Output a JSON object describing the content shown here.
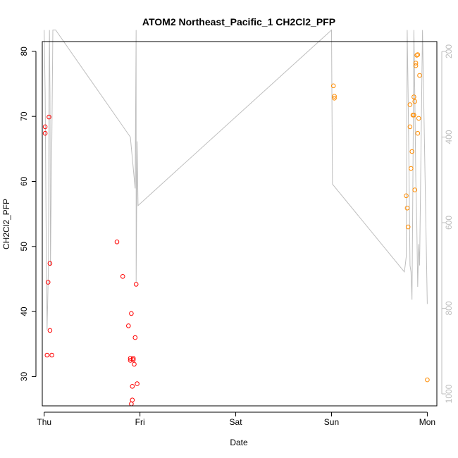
{
  "chart_data": {
    "type": "scatter",
    "title": "ATOM2 Northeast_Pacific_1 CH2Cl2_PFP",
    "xlabel": "Date",
    "ylabel": "CH2Cl2_PFP",
    "x_ticks": [
      "Thu",
      "Fri",
      "Sat",
      "Sun",
      "Mon"
    ],
    "xlim": [
      -0.02,
      4.1
    ],
    "ylim": [
      25.5,
      81.5
    ],
    "y_ticks": [
      30,
      40,
      50,
      60,
      70,
      80
    ],
    "y2_ticks": [
      200,
      400,
      600,
      800,
      1000
    ],
    "y2lim": [
      1028,
      177
    ],
    "grid": false,
    "colors": {
      "series_1": "#ff0000",
      "series_2": "#ff8c00",
      "altitude_line": "#bebebe",
      "axis": "#000000",
      "right_axis": "#bebebe"
    },
    "series": [
      {
        "color": "#ff0000",
        "points": [
          [
            0.01,
            68.4
          ],
          [
            0.01,
            67.4
          ],
          [
            0.03,
            33.3
          ],
          [
            0.04,
            44.5
          ],
          [
            0.05,
            69.9
          ],
          [
            0.06,
            37.1
          ],
          [
            0.06,
            47.4
          ],
          [
            0.08,
            33.3
          ],
          [
            0.76,
            50.7
          ],
          [
            0.82,
            45.4
          ],
          [
            0.88,
            37.8
          ],
          [
            0.9,
            32.5
          ],
          [
            0.9,
            32.8
          ],
          [
            0.91,
            25.8
          ],
          [
            0.91,
            39.7
          ],
          [
            0.92,
            26.4
          ],
          [
            0.92,
            28.5
          ],
          [
            0.93,
            32.6
          ],
          [
            0.93,
            32.8
          ],
          [
            0.94,
            31.9
          ],
          [
            0.95,
            36.0
          ],
          [
            0.96,
            44.2
          ],
          [
            0.97,
            28.9
          ]
        ]
      },
      {
        "color": "#ff8c00",
        "points": [
          [
            3.02,
            74.7
          ],
          [
            3.03,
            73.1
          ],
          [
            3.03,
            72.8
          ],
          [
            3.78,
            57.8
          ],
          [
            3.79,
            55.9
          ],
          [
            3.8,
            53.0
          ],
          [
            3.82,
            68.4
          ],
          [
            3.82,
            71.8
          ],
          [
            3.83,
            62.0
          ],
          [
            3.84,
            64.6
          ],
          [
            3.85,
            70.2
          ],
          [
            3.86,
            73.0
          ],
          [
            3.86,
            70.2
          ],
          [
            3.87,
            72.3
          ],
          [
            3.87,
            58.7
          ],
          [
            3.88,
            78.2
          ],
          [
            3.88,
            77.8
          ],
          [
            3.89,
            79.4
          ],
          [
            3.9,
            79.5
          ],
          [
            3.9,
            67.4
          ],
          [
            3.91,
            69.7
          ],
          [
            3.92,
            76.3
          ],
          [
            4.0,
            29.5
          ]
        ]
      }
    ],
    "altitude_track": [
      [
        0.0,
        150
      ],
      [
        0.01,
        300
      ],
      [
        0.02,
        600
      ],
      [
        0.03,
        850
      ],
      [
        0.045,
        700
      ],
      [
        0.05,
        300
      ],
      [
        0.055,
        150
      ],
      [
        0.06,
        300
      ],
      [
        0.065,
        700
      ],
      [
        0.07,
        600
      ],
      [
        0.08,
        400
      ],
      [
        0.09,
        150
      ],
      [
        0.12,
        150
      ],
      [
        0.9,
        400
      ],
      [
        0.95,
        520
      ],
      [
        0.96,
        150
      ],
      [
        0.96,
        740
      ],
      [
        0.97,
        410
      ],
      [
        0.98,
        560
      ],
      [
        3.0,
        150
      ],
      [
        3.01,
        510
      ],
      [
        3.76,
        715
      ],
      [
        3.77,
        700
      ],
      [
        3.78,
        680
      ],
      [
        3.79,
        150
      ],
      [
        3.8,
        300
      ],
      [
        3.81,
        500
      ],
      [
        3.82,
        700
      ],
      [
        3.83,
        715
      ],
      [
        3.84,
        780
      ],
      [
        3.85,
        500
      ],
      [
        3.86,
        150
      ],
      [
        3.87,
        300
      ],
      [
        3.88,
        500
      ],
      [
        3.89,
        600
      ],
      [
        3.9,
        750
      ],
      [
        3.91,
        650
      ],
      [
        3.92,
        700
      ],
      [
        3.95,
        150
      ],
      [
        4.0,
        790
      ]
    ]
  }
}
